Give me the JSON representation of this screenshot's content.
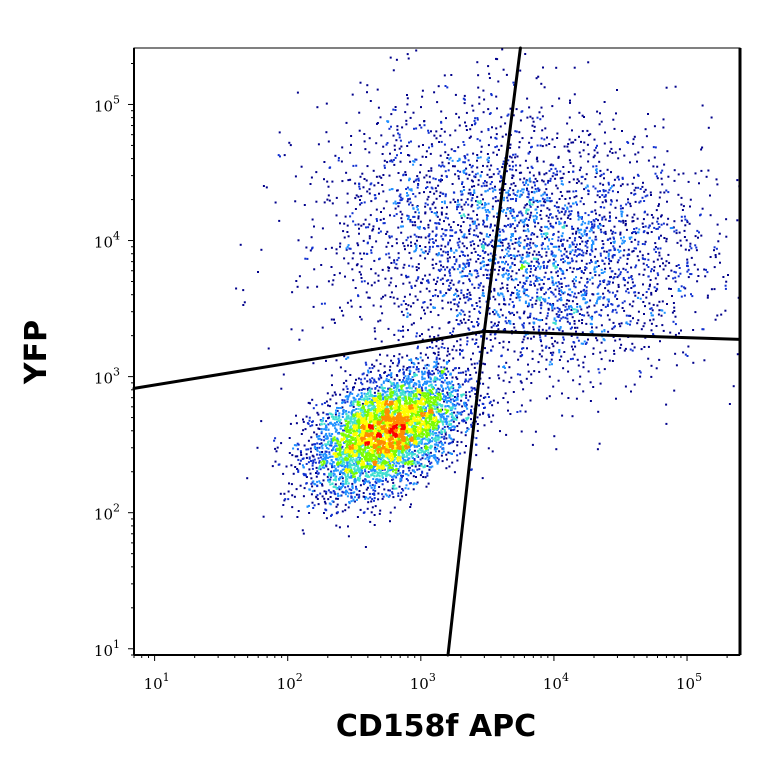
{
  "chart_data": {
    "type": "scatter",
    "title": "",
    "xlabel": "CD158f APC",
    "ylabel": "YFP",
    "xscale": "log",
    "yscale": "log",
    "xlim": [
      7,
      250000
    ],
    "ylim": [
      9,
      260000
    ],
    "grid": false,
    "legend": "none",
    "x_ticks": [
      {
        "value": 10,
        "base": "10",
        "exp": "1"
      },
      {
        "value": 100,
        "base": "10",
        "exp": "2"
      },
      {
        "value": 1000,
        "base": "10",
        "exp": "3"
      },
      {
        "value": 10000,
        "base": "10",
        "exp": "4"
      },
      {
        "value": 100000,
        "base": "10",
        "exp": "5"
      }
    ],
    "y_ticks": [
      {
        "value": 10,
        "base": "10",
        "exp": "1"
      },
      {
        "value": 100,
        "base": "10",
        "exp": "2"
      },
      {
        "value": 1000,
        "base": "10",
        "exp": "3"
      },
      {
        "value": 10000,
        "base": "10",
        "exp": "4"
      },
      {
        "value": 100000,
        "base": "10",
        "exp": "5"
      }
    ],
    "gate_lines": [
      {
        "name": "gate-vertical-lower",
        "points": [
          [
            1600,
            9
          ],
          [
            3000,
            2150
          ]
        ]
      },
      {
        "name": "gate-vertical-upper",
        "points": [
          [
            3000,
            2150
          ],
          [
            5600,
            260000
          ]
        ]
      },
      {
        "name": "gate-horizontal-left",
        "points": [
          [
            7,
            820
          ],
          [
            3000,
            2150
          ]
        ]
      },
      {
        "name": "gate-horizontal-right",
        "points": [
          [
            3000,
            2150
          ],
          [
            250000,
            1880
          ]
        ]
      }
    ],
    "populations": [
      {
        "name": "cluster-double-negative",
        "center": [
          550,
          400
        ],
        "log_sd": [
          0.28,
          0.22
        ],
        "correlation": 0.45,
        "share": 0.58
      },
      {
        "name": "cluster-double-positive",
        "center": [
          9000,
          7000
        ],
        "log_sd": [
          0.6,
          0.45
        ],
        "correlation": 0.1,
        "share": 0.3
      },
      {
        "name": "cluster-scattered-upper",
        "center": [
          1500,
          20000
        ],
        "log_sd": [
          0.55,
          0.45
        ],
        "correlation": 0.2,
        "share": 0.12
      }
    ],
    "density_colors": [
      "#00008b",
      "#1030d0",
      "#1e90ff",
      "#40e0d0",
      "#7cfc00",
      "#ffff00",
      "#ff8c00",
      "#ff0000"
    ],
    "event_count": 9000
  }
}
